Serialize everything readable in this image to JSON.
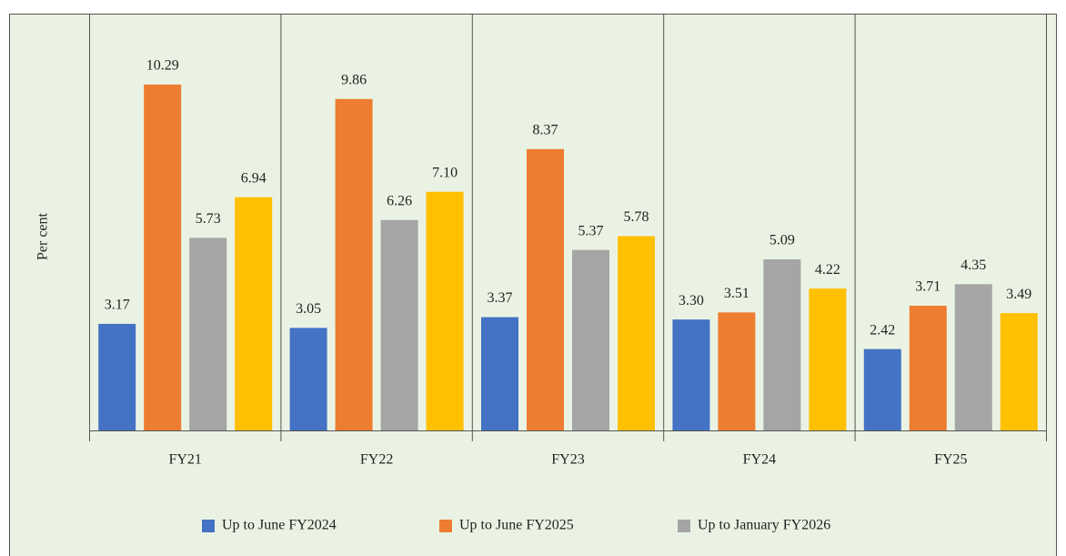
{
  "chart_data": {
    "type": "bar",
    "y_label": "Per cent",
    "categories": [
      "FY21",
      "FY22",
      "FY23",
      "FY24",
      "FY25"
    ],
    "series": [
      {
        "name": "Up to June FY2024",
        "color": "#4472c4",
        "values": [
          3.17,
          3.05,
          3.37,
          3.3,
          2.42
        ],
        "value_labels": [
          "3.17",
          "3.05",
          "3.37",
          "3.30",
          "2.42"
        ]
      },
      {
        "name": "Up to June FY2025",
        "color": "#ed7d31",
        "values": [
          10.29,
          9.86,
          8.37,
          3.51,
          3.71
        ],
        "value_labels": [
          "10.29",
          "9.86",
          "8.37",
          "3.51",
          "3.71"
        ]
      },
      {
        "name": "Up to January FY2026",
        "color": "#a5a5a5",
        "values": [
          5.73,
          6.26,
          5.37,
          5.09,
          4.35
        ],
        "value_labels": [
          "5.73",
          "6.26",
          "5.37",
          "5.09",
          "4.35"
        ]
      },
      {
        "color": "#ffc000",
        "values": [
          6.94,
          7.1,
          5.78,
          4.22,
          3.49
        ],
        "value_labels": [
          "6.94",
          "7.10",
          "5.78",
          "4.22",
          "3.49"
        ]
      }
    ],
    "ylim": [
      0,
      12.4
    ],
    "legend": "bottom"
  }
}
